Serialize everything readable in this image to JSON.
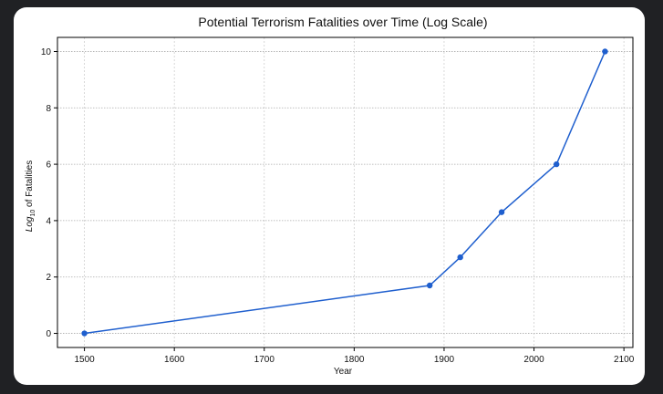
{
  "chart_data": {
    "type": "line",
    "title": "Potential Terrorism Fatalities over Time (Log Scale)",
    "xlabel": "Year",
    "ylabel_base": "Log",
    "ylabel_sub": "10",
    "ylabel_rest": " of Fatalities",
    "xlim": [
      1470,
      2110
    ],
    "ylim": [
      -0.5,
      10.5
    ],
    "xticks": [
      1500,
      1600,
      1700,
      1800,
      1900,
      2000,
      2100
    ],
    "yticks": [
      0,
      2,
      4,
      6,
      8,
      10
    ],
    "grid": true,
    "series": [
      {
        "color": "#1f5fce",
        "points": [
          {
            "x": 1500,
            "y": 0
          },
          {
            "x": 1884,
            "y": 1.7
          },
          {
            "x": 1918,
            "y": 2.7
          },
          {
            "x": 1964,
            "y": 4.3
          },
          {
            "x": 2025,
            "y": 6.0
          },
          {
            "x": 2079,
            "y": 10.0
          }
        ]
      }
    ]
  }
}
